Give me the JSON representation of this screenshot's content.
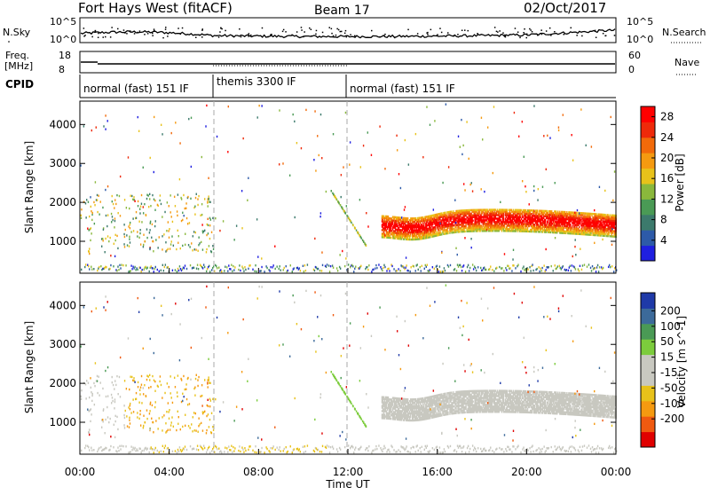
{
  "header": {
    "station": "Fort Hays West (fitACF)",
    "beam": "Beam 17",
    "date": "02/Oct/2017"
  },
  "summary": {
    "nsky_label": "N.Sky",
    "nsearch_label": "N.Search",
    "freq_label_line1": "Freq.",
    "freq_label_line2": "[MHz]",
    "nave_label": "Nave",
    "cpid_label": "CPID",
    "left_ticks_top": [
      "10^5",
      "10^0"
    ],
    "right_ticks_top": [
      "10^5",
      "10^0"
    ],
    "left_ticks_freq": [
      "18",
      "8"
    ],
    "right_ticks_nave": [
      "60",
      "0"
    ],
    "cpid_segments": [
      {
        "label": "normal (fast) 151 IF",
        "start_h": 0,
        "end_h": 6
      },
      {
        "label": "themis 3300 IF",
        "start_h": 6,
        "end_h": 12
      },
      {
        "label": "normal (fast) 151 IF",
        "start_h": 12,
        "end_h": 24
      }
    ]
  },
  "colors": {
    "power": [
      "#1f1fe0",
      "#2d5aa8",
      "#3c7a6c",
      "#4a9a55",
      "#8ab83c",
      "#e8c21a",
      "#f59a10",
      "#f26a0a",
      "#ee2a0a",
      "#ff0000"
    ],
    "velocity": [
      "#e00000",
      "#f05a10",
      "#f59a10",
      "#e8c21a",
      "#c8c8c0",
      "#c8c8c0",
      "#7ccc3c",
      "#4a9a55",
      "#3c6a9a",
      "#1f3aa8"
    ]
  },
  "chart_data": [
    {
      "type": "heatmap",
      "name": "power",
      "xlabel": "",
      "ylabel": "Slant Range [km]",
      "x_range_h": [
        0,
        24
      ],
      "ylim": [
        180,
        4600
      ],
      "yticks": [
        "1000",
        "2000",
        "3000",
        "4000"
      ],
      "colorbar_label": "Power [dB]",
      "colorbar_ticks": [
        "4",
        "8",
        "12",
        "16",
        "20",
        "24",
        "28"
      ],
      "clim": [
        0,
        30
      ]
    },
    {
      "type": "heatmap",
      "name": "velocity",
      "xlabel": "Time UT",
      "ylabel": "Slant Range [km]",
      "x_range_h": [
        0,
        24
      ],
      "ylim": [
        180,
        4600
      ],
      "xticks": [
        "00:00",
        "04:00",
        "08:00",
        "12:00",
        "16:00",
        "20:00",
        "00:00"
      ],
      "yticks": [
        "1000",
        "2000",
        "3000",
        "4000"
      ],
      "colorbar_label": "Velocity [m s^-1]",
      "colorbar_ticks": [
        "200",
        "100",
        "50",
        "15",
        "-15",
        "-50",
        "-100",
        "-200"
      ],
      "clim": [
        -250,
        250
      ]
    }
  ]
}
